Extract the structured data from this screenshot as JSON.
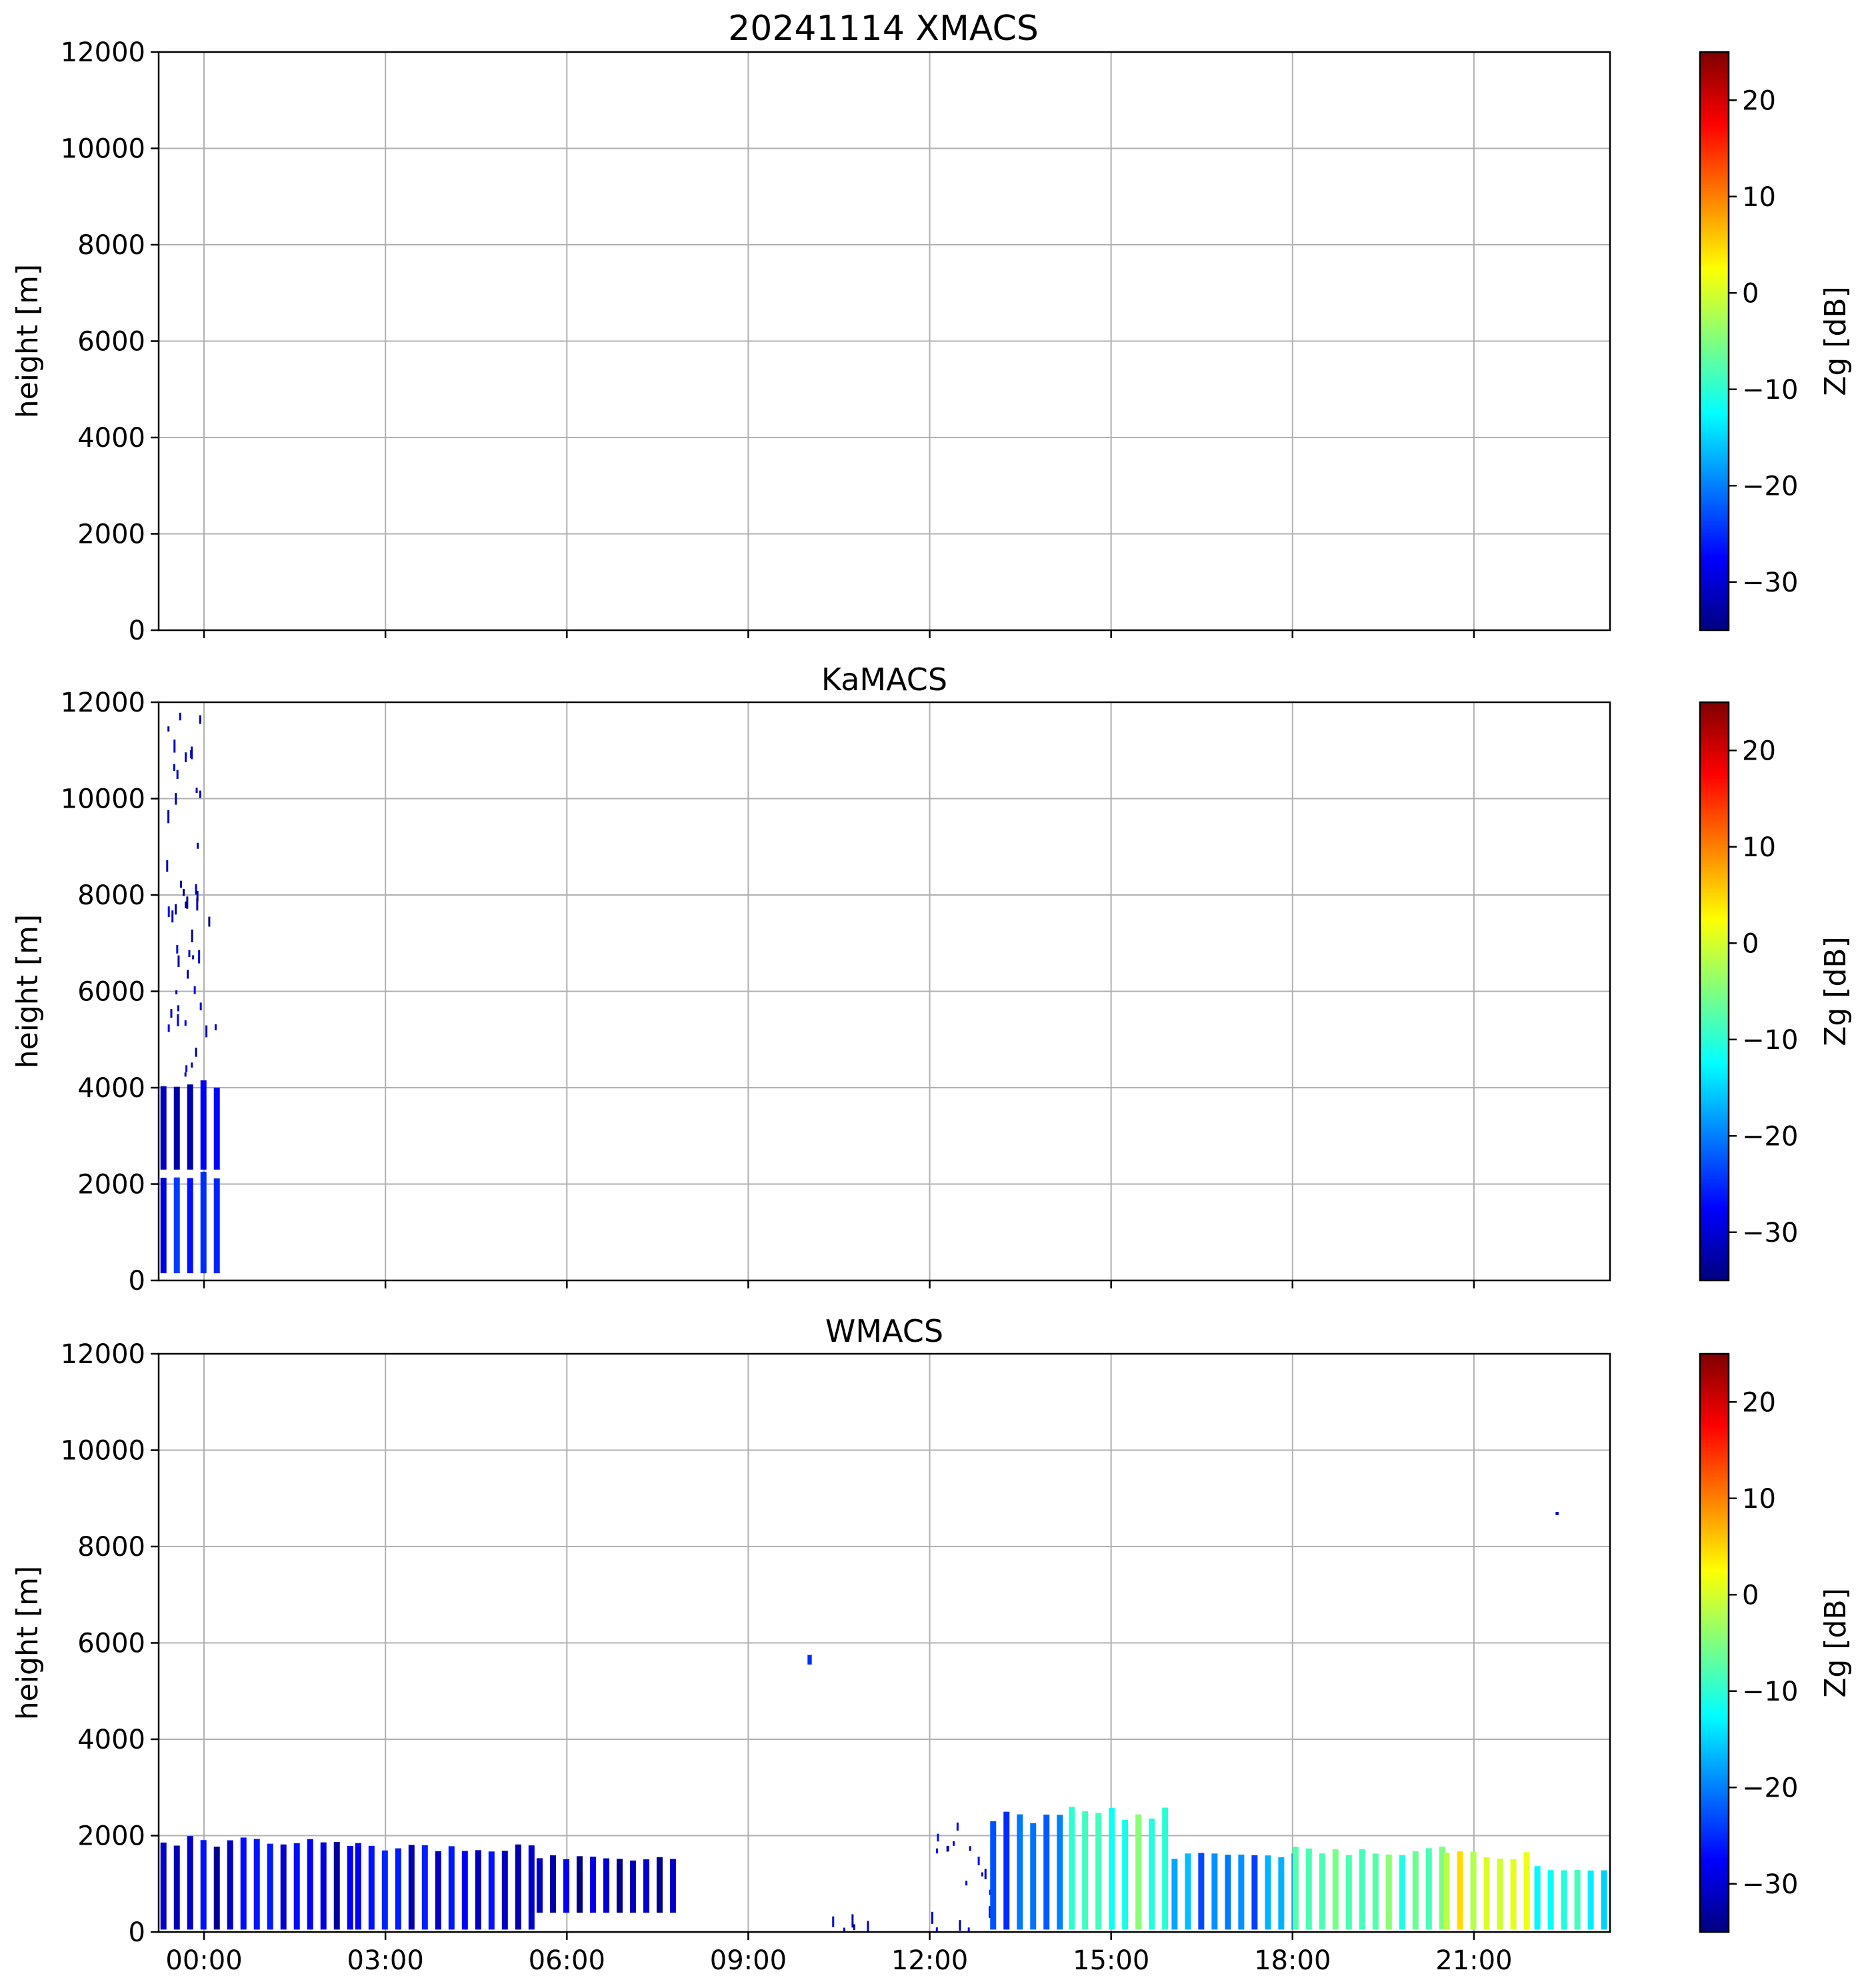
{
  "figure": {
    "title": "20241114 XMACS"
  },
  "colormap": {
    "name": "jet",
    "stops": [
      "#00007f",
      "#0000ff",
      "#007fff",
      "#00ffff",
      "#7fff7f",
      "#ffff00",
      "#ff7f00",
      "#ff0000",
      "#7f0000"
    ]
  },
  "chart_data": [
    {
      "type": "heatmap",
      "title": "20241114 XMACS",
      "ylabel": "height [m]",
      "xlabel": "",
      "xlim": [
        -0.75,
        23.25
      ],
      "ylim": [
        0,
        12000
      ],
      "xticks": [
        0,
        3,
        6,
        9,
        12,
        15,
        18,
        21
      ],
      "xtick_labels": [],
      "yticks": [
        0,
        2000,
        4000,
        6000,
        8000,
        10000,
        12000
      ],
      "ytick_labels": [
        "0",
        "2000",
        "4000",
        "6000",
        "8000",
        "10000",
        "12000"
      ],
      "grid": true,
      "colorbar": {
        "label": "Zg [dB]",
        "range": [
          -35,
          25
        ],
        "ticks": [
          -30,
          -20,
          -10,
          0,
          10,
          20
        ],
        "tick_labels": [
          "−30",
          "−20",
          "−10",
          "0",
          "10",
          "20"
        ]
      },
      "regions": []
    },
    {
      "type": "heatmap",
      "title": "KaMACS",
      "ylabel": "height [m]",
      "xlabel": "",
      "xlim": [
        -0.75,
        23.25
      ],
      "ylim": [
        0,
        12000
      ],
      "xticks": [
        0,
        3,
        6,
        9,
        12,
        15,
        18,
        21
      ],
      "xtick_labels": [],
      "yticks": [
        0,
        2000,
        4000,
        6000,
        8000,
        10000,
        12000
      ],
      "ytick_labels": [
        "0",
        "2000",
        "4000",
        "6000",
        "8000",
        "10000",
        "12000"
      ],
      "grid": true,
      "colorbar": {
        "label": "Zg [dB]",
        "range": [
          -35,
          25
        ],
        "ticks": [
          -30,
          -20,
          -10,
          0,
          10,
          20
        ],
        "tick_labels": [
          "−30",
          "−20",
          "−10",
          "0",
          "10",
          "20"
        ]
      },
      "regions": [
        {
          "t0": -0.72,
          "t1": 0.25,
          "h0": 150,
          "h1": 2300,
          "dbz": -28,
          "style": "stripes"
        },
        {
          "t0": -0.72,
          "t1": 0.25,
          "h0": 2300,
          "h1": 4200,
          "dbz": -30,
          "style": "stripes"
        },
        {
          "t0": -0.7,
          "t1": 0.2,
          "h0": 4200,
          "h1": 6300,
          "dbz": -31,
          "style": "sparse"
        },
        {
          "t0": -0.7,
          "t1": 0.15,
          "h0": 6300,
          "h1": 9500,
          "dbz": -32,
          "style": "sparse"
        },
        {
          "t0": -0.68,
          "t1": 0.1,
          "h0": 9500,
          "h1": 11800,
          "dbz": -32,
          "style": "sparse"
        }
      ]
    },
    {
      "type": "heatmap",
      "title": "WMACS",
      "ylabel": "height [m]",
      "xlabel": "",
      "xlim": [
        -0.75,
        23.25
      ],
      "ylim": [
        0,
        12000
      ],
      "xticks": [
        0,
        3,
        6,
        9,
        12,
        15,
        18,
        21
      ],
      "xtick_labels": [
        "00:00",
        "03:00",
        "06:00",
        "09:00",
        "12:00",
        "15:00",
        "18:00",
        "21:00"
      ],
      "yticks": [
        0,
        2000,
        4000,
        6000,
        8000,
        10000,
        12000
      ],
      "ytick_labels": [
        "0",
        "2000",
        "4000",
        "6000",
        "8000",
        "10000",
        "12000"
      ],
      "grid": true,
      "colorbar": {
        "label": "Zg [dB]",
        "range": [
          -35,
          25
        ],
        "ticks": [
          -30,
          -20,
          -10,
          0,
          10,
          20
        ],
        "tick_labels": [
          "−30",
          "−20",
          "−10",
          "0",
          "10",
          "20"
        ]
      },
      "regions": [
        {
          "t0": -0.72,
          "t1": 2.5,
          "h0": 50,
          "h1": 2000,
          "dbz": -30,
          "style": "stripes"
        },
        {
          "t0": 2.5,
          "t1": 5.5,
          "h0": 50,
          "h1": 1850,
          "dbz": -29,
          "style": "stripes"
        },
        {
          "t0": 5.5,
          "t1": 7.9,
          "h0": 400,
          "h1": 1600,
          "dbz": -31,
          "style": "stripes"
        },
        {
          "t0": 9.7,
          "t1": 11.0,
          "h0": 50,
          "h1": 600,
          "dbz": -31,
          "style": "sparse"
        },
        {
          "t0": 9.98,
          "t1": 10.05,
          "h0": 5550,
          "h1": 5750,
          "dbz": -25,
          "style": "solid"
        },
        {
          "t0": 12.0,
          "t1": 13.0,
          "h0": 50,
          "h1": 2400,
          "dbz": -30,
          "style": "sparse"
        },
        {
          "t0": 13.0,
          "t1": 14.3,
          "h0": 50,
          "h1": 2500,
          "dbz": -22,
          "style": "stripes"
        },
        {
          "t0": 14.3,
          "t1": 16.0,
          "h0": 50,
          "h1": 2600,
          "dbz": -8,
          "style": "stripes"
        },
        {
          "t0": 16.0,
          "t1": 18.0,
          "h0": 50,
          "h1": 1700,
          "dbz": -20,
          "style": "stripes"
        },
        {
          "t0": 18.0,
          "t1": 20.5,
          "h0": 50,
          "h1": 1800,
          "dbz": -8,
          "style": "stripes"
        },
        {
          "t0": 20.5,
          "t1": 22.0,
          "h0": 50,
          "h1": 1700,
          "dbz": 2,
          "style": "stripes"
        },
        {
          "t0": 22.0,
          "t1": 23.2,
          "h0": 50,
          "h1": 1400,
          "dbz": -12,
          "style": "stripes"
        },
        {
          "t0": 22.35,
          "t1": 22.4,
          "h0": 8650,
          "h1": 8720,
          "dbz": -30,
          "style": "solid"
        }
      ]
    }
  ]
}
